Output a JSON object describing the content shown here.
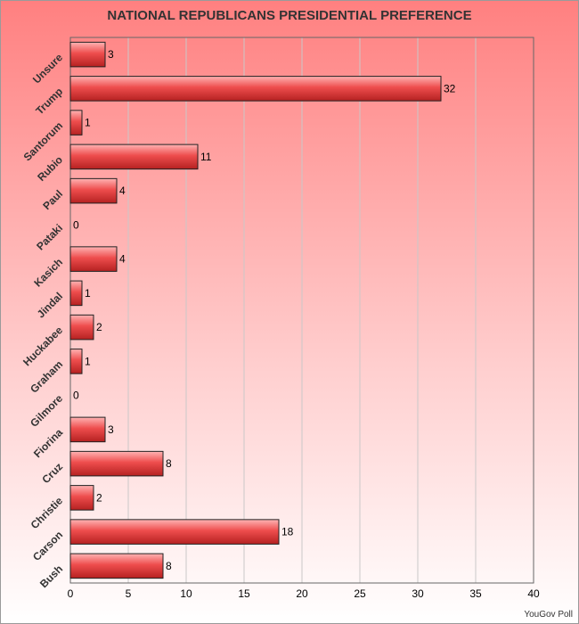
{
  "chart_data": {
    "type": "bar",
    "orientation": "horizontal",
    "title": "NATIONAL REPUBLICANS PRESIDENTIAL PREFERENCE",
    "categories": [
      "Unsure",
      "Trump",
      "Santorum",
      "Rubio",
      "Paul",
      "Pataki",
      "Kasich",
      "Jindal",
      "Huckabee",
      "Graham",
      "Gilmore",
      "Fiorina",
      "Cruz",
      "Christie",
      "Carson",
      "Bush"
    ],
    "values": [
      3,
      32,
      1,
      11,
      4,
      0,
      4,
      1,
      2,
      1,
      0,
      3,
      8,
      2,
      18,
      8
    ],
    "xlim": [
      0,
      40
    ],
    "xticks": [
      0,
      5,
      10,
      15,
      20,
      25,
      30,
      35,
      40
    ],
    "xlabel": "",
    "ylabel": "",
    "grid": "vertical",
    "data_labels": true,
    "bar_color": "#e84a4a"
  },
  "source": "YouGov Poll"
}
